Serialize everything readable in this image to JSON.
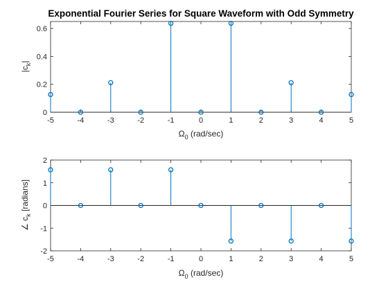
{
  "chart_data": [
    {
      "type": "stem",
      "title": "Exponential Fourier Series for Square Waveform with Odd Symmetry",
      "xlabel": "Ω",
      "xlabel_sub": "0",
      "xlabel_suffix": " (rad/sec)",
      "ylabel": "|c",
      "ylabel_sub": "k",
      "ylabel_suffix": "|",
      "xlim": [
        -5,
        5
      ],
      "ylim": [
        0,
        0.65
      ],
      "xticks": [
        -5,
        -4,
        -3,
        -2,
        -1,
        0,
        1,
        2,
        3,
        4,
        5
      ],
      "yticks": [
        0,
        0.2,
        0.4,
        0.6
      ],
      "ytick_labels": [
        "0",
        "0.2",
        "0.4",
        "0.6"
      ],
      "x": [
        -5,
        -4,
        -3,
        -2,
        -1,
        0,
        1,
        2,
        3,
        4,
        5
      ],
      "y": [
        0.127,
        0,
        0.212,
        0,
        0.637,
        0,
        0.637,
        0,
        0.212,
        0,
        0.127
      ],
      "color": "#0072bd"
    },
    {
      "type": "stem",
      "title": "",
      "xlabel": "Ω",
      "xlabel_sub": "0",
      "xlabel_suffix": " (rad/sec)",
      "ylabel": "∠ c",
      "ylabel_sub": "k",
      "ylabel_suffix": " [radians]",
      "xlim": [
        -5,
        5
      ],
      "ylim": [
        -2,
        2
      ],
      "xticks": [
        -5,
        -4,
        -3,
        -2,
        -1,
        0,
        1,
        2,
        3,
        4,
        5
      ],
      "yticks": [
        -2,
        -1,
        0,
        1,
        2
      ],
      "ytick_labels": [
        "-2",
        "-1",
        "0",
        "1",
        "2"
      ],
      "x": [
        -5,
        -4,
        -3,
        -2,
        -1,
        0,
        1,
        2,
        3,
        4,
        5
      ],
      "y": [
        1.5708,
        0,
        1.5708,
        0,
        1.5708,
        0,
        -1.5708,
        0,
        -1.5708,
        0,
        -1.5708
      ],
      "color": "#0072bd"
    }
  ]
}
